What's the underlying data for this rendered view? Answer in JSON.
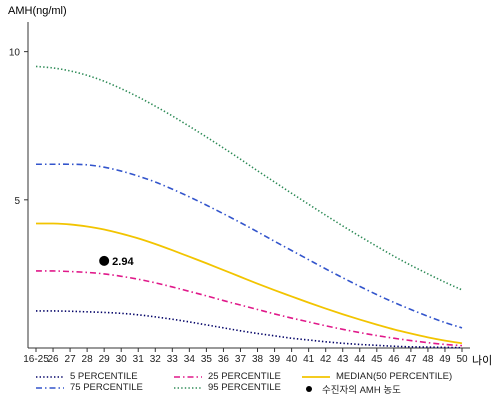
{
  "chart_data": {
    "type": "line",
    "ylabel": "AMH(ng/ml)",
    "xlabel": "나이",
    "categories": [
      "16-25",
      "26",
      "27",
      "28",
      "29",
      "30",
      "31",
      "32",
      "33",
      "34",
      "35",
      "36",
      "37",
      "38",
      "39",
      "40",
      "41",
      "42",
      "43",
      "44",
      "45",
      "46",
      "47",
      "48",
      "49",
      "50"
    ],
    "yticks": [
      5,
      10
    ],
    "ylim": [
      0,
      11
    ],
    "series": [
      {
        "name": "5 PERCENTILE",
        "color": "#000066",
        "style": "dotted",
        "values": [
          1.25,
          1.25,
          1.24,
          1.22,
          1.2,
          1.17,
          1.12,
          1.05,
          0.97,
          0.88,
          0.78,
          0.68,
          0.58,
          0.49,
          0.41,
          0.33,
          0.27,
          0.21,
          0.16,
          0.12,
          0.09,
          0.06,
          0.04,
          0.03,
          0.02,
          0.01
        ]
      },
      {
        "name": "25 PERCENTILE",
        "color": "#e0198a",
        "style": "dashdot",
        "values": [
          2.6,
          2.6,
          2.58,
          2.55,
          2.5,
          2.42,
          2.32,
          2.2,
          2.06,
          1.91,
          1.76,
          1.6,
          1.45,
          1.3,
          1.15,
          1.01,
          0.88,
          0.75,
          0.63,
          0.52,
          0.42,
          0.33,
          0.25,
          0.18,
          0.12,
          0.08
        ]
      },
      {
        "name": "MEDIAN(50 PERCENTILE)",
        "color": "#f2c400",
        "style": "solid",
        "values": [
          4.2,
          4.2,
          4.17,
          4.1,
          4.0,
          3.86,
          3.7,
          3.51,
          3.3,
          3.08,
          2.86,
          2.63,
          2.4,
          2.17,
          1.95,
          1.74,
          1.53,
          1.33,
          1.14,
          0.96,
          0.79,
          0.63,
          0.49,
          0.36,
          0.25,
          0.16
        ]
      },
      {
        "name": "75 PERCENTILE",
        "color": "#3355cc",
        "style": "dashdot",
        "values": [
          6.2,
          6.2,
          6.2,
          6.18,
          6.1,
          5.97,
          5.8,
          5.6,
          5.36,
          5.1,
          4.82,
          4.53,
          4.23,
          3.92,
          3.6,
          3.29,
          2.98,
          2.67,
          2.37,
          2.08,
          1.8,
          1.54,
          1.3,
          1.07,
          0.86,
          0.68
        ]
      },
      {
        "name": "95 PERCENTILE",
        "color": "#2e8b57",
        "style": "dotted",
        "values": [
          9.5,
          9.45,
          9.35,
          9.2,
          9.0,
          8.75,
          8.47,
          8.16,
          7.83,
          7.48,
          7.12,
          6.75,
          6.37,
          5.98,
          5.6,
          5.22,
          4.85,
          4.48,
          4.12,
          3.77,
          3.43,
          3.1,
          2.79,
          2.5,
          2.22,
          1.96
        ]
      }
    ],
    "points": [
      {
        "name": "수진자의 AMH 농도",
        "x": "29",
        "y": 2.94,
        "label": "2.94",
        "color": "#000000"
      }
    ],
    "legend_position": "bottom",
    "grid": false
  }
}
